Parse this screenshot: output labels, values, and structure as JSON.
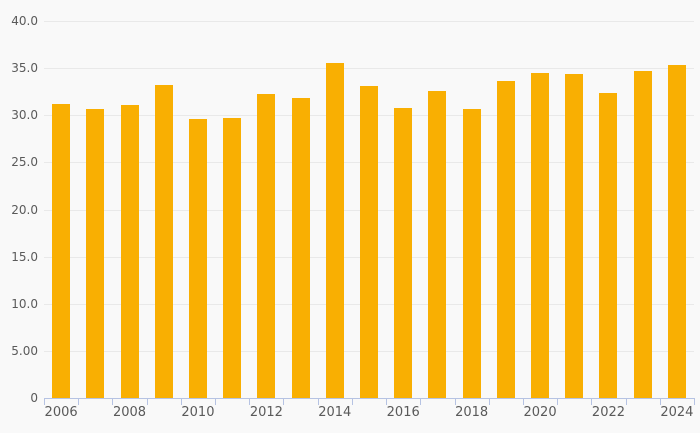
{
  "chart_data": {
    "type": "bar",
    "title": "",
    "xlabel": "",
    "ylabel": "",
    "categories": [
      2006,
      2007,
      2008,
      2009,
      2010,
      2011,
      2012,
      2013,
      2014,
      2015,
      2016,
      2017,
      2018,
      2019,
      2020,
      2021,
      2022,
      2023,
      2024
    ],
    "values": [
      31.2,
      30.7,
      31.1,
      33.2,
      29.6,
      29.7,
      32.3,
      31.8,
      35.5,
      33.1,
      30.8,
      32.6,
      30.7,
      33.6,
      34.5,
      34.4,
      32.4,
      34.7,
      35.3
    ],
    "ylim": [
      0,
      40
    ],
    "grid": true,
    "legend": false,
    "y_ticks": [
      {
        "value": 40,
        "label": "40.0"
      },
      {
        "value": 35,
        "label": "35.0"
      },
      {
        "value": 30,
        "label": "30.0"
      },
      {
        "value": 25,
        "label": "25.0"
      },
      {
        "value": 20,
        "label": "20.0"
      },
      {
        "value": 15,
        "label": "15.0"
      },
      {
        "value": 10,
        "label": "10.0"
      },
      {
        "value": 5,
        "label": "5.00"
      },
      {
        "value": 0,
        "label": "0"
      }
    ],
    "x_tick_labels": [
      "2006",
      "2008",
      "2010",
      "2012",
      "2014",
      "2016",
      "2018",
      "2020",
      "2022",
      "2024"
    ],
    "colors": {
      "bar": "#f9af02",
      "background": "#f9f9f9",
      "gridline": "#e9e9e9",
      "axis": "#b6c3e3",
      "tick_text": "#5a5a5a"
    }
  }
}
